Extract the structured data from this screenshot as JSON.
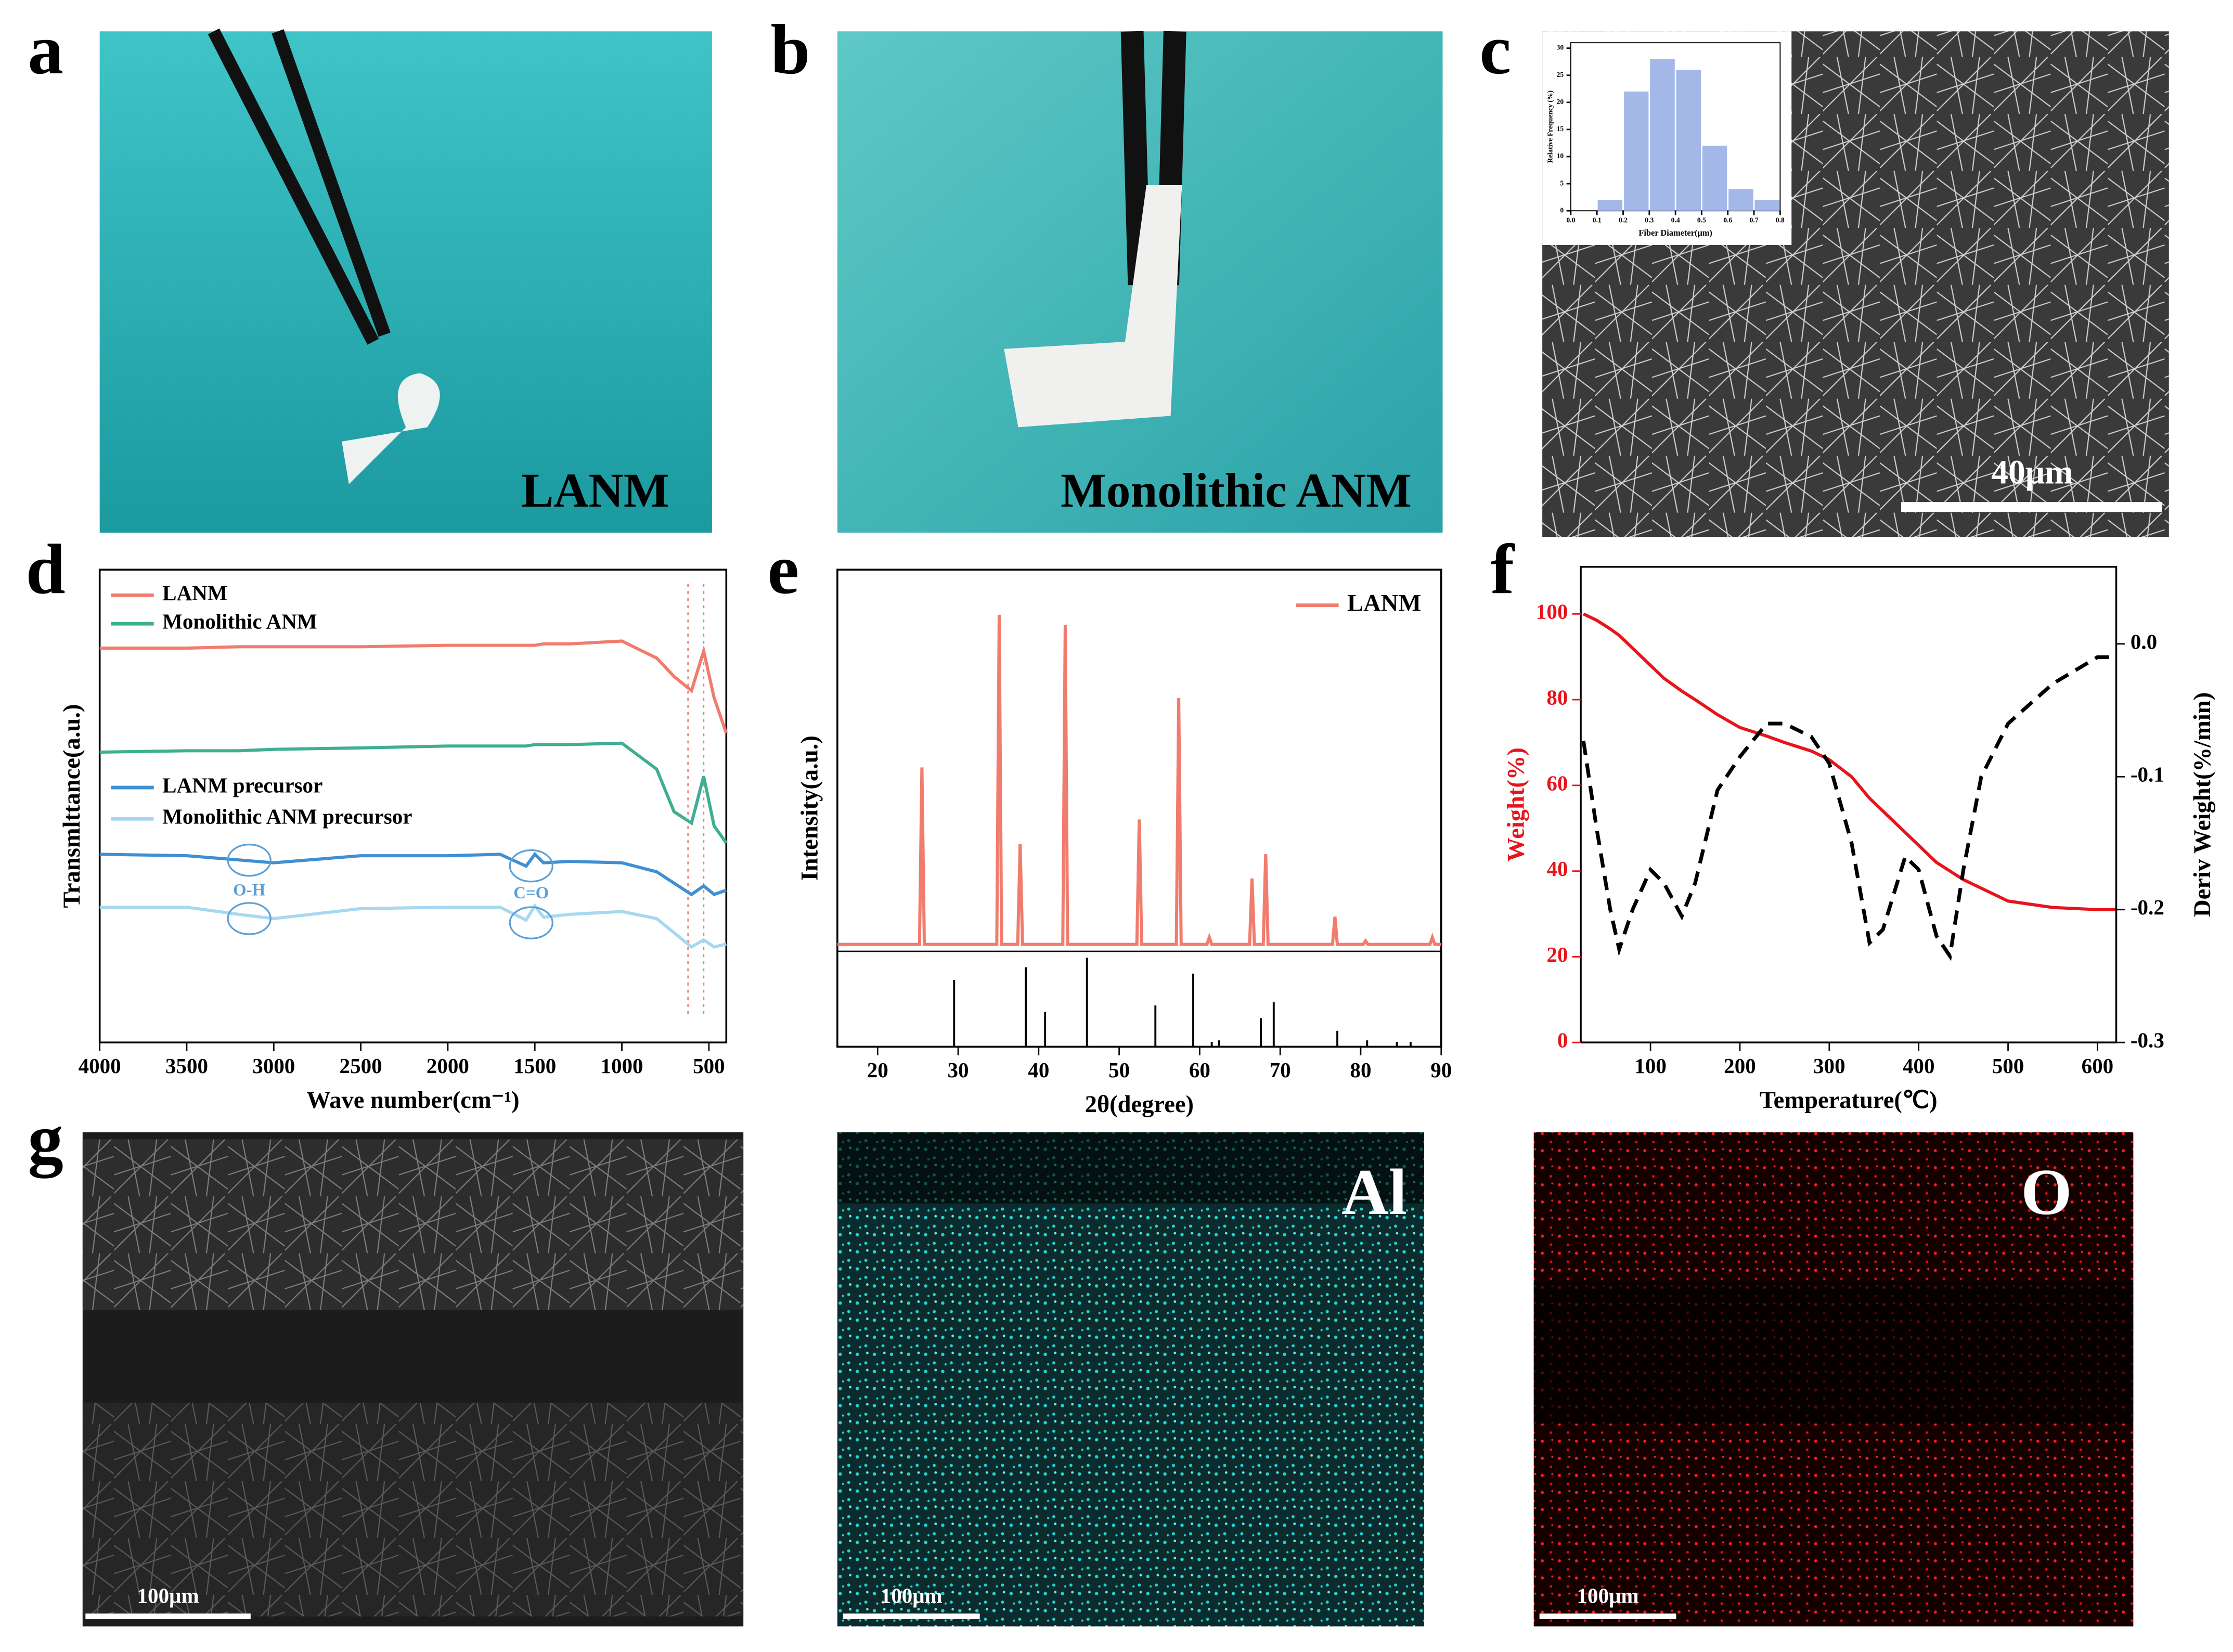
{
  "photos": [
    {
      "letter": "a",
      "label": "LANM"
    },
    {
      "letter": "b",
      "label": "Monolithic ANM"
    },
    {
      "letter": "c",
      "scale_bar": "40μm"
    },
    {
      "letter": "g",
      "scale_bar": "100μm"
    },
    {
      "scale_bar": "100μm",
      "label": "Al"
    },
    {
      "scale_bar": "100μm",
      "label": "O"
    }
  ],
  "chart_data": [
    {
      "type": "line",
      "panel": "d",
      "xlabel": "Wave number(cm⁻¹)",
      "ylabel": "Transmlttance(a.u.)",
      "x": [
        4000,
        3500,
        3200,
        3000,
        2500,
        2000,
        1700,
        1550,
        1500,
        1450,
        1300,
        1000,
        800,
        700,
        600,
        530,
        470,
        400
      ],
      "xlim": [
        4000,
        400
      ],
      "xticks": [
        4000,
        3500,
        3000,
        2500,
        2000,
        1500,
        1000,
        500
      ],
      "ylim": [
        0,
        100
      ],
      "series": [
        {
          "name": "LANM",
          "color": "#f07c6e",
          "values": [
            83.4,
            83.4,
            83.7,
            83.7,
            83.7,
            84.0,
            84.0,
            84.0,
            84.0,
            84.3,
            84.3,
            84.9,
            81.3,
            77.4,
            74.4,
            82.8,
            72.9,
            65.4
          ]
        },
        {
          "name": "Monolithic ANM",
          "color": "#3fae92",
          "values": [
            61.4,
            61.7,
            61.7,
            62.0,
            62.3,
            62.7,
            62.7,
            62.7,
            63.0,
            63.0,
            63.0,
            63.3,
            57.8,
            48.8,
            46.4,
            56.3,
            45.8,
            42.2
          ]
        },
        {
          "name": "LANM precursor",
          "color": "#3f8fd2",
          "values": [
            39.8,
            39.5,
            38.6,
            38.0,
            39.5,
            39.5,
            39.8,
            37.3,
            39.8,
            38.0,
            38.3,
            38.0,
            36.1,
            33.7,
            31.3,
            33.1,
            31.3,
            32.2
          ]
        },
        {
          "name": "Monolithic ANM precursor",
          "color": "#a8d8f0",
          "values": [
            28.6,
            28.6,
            27.1,
            26.2,
            28.3,
            28.6,
            28.6,
            25.9,
            28.9,
            26.5,
            27.1,
            27.7,
            26.2,
            23.2,
            20.2,
            21.7,
            20.2,
            20.8
          ]
        }
      ],
      "annotations": [
        "O-H",
        "C=O"
      ],
      "reference_lines": [
        620,
        530
      ],
      "legend": "top-left"
    },
    {
      "type": "line",
      "panel": "e",
      "xlabel": "2θ(degree)",
      "ylabel": "Intensity(a.u.)",
      "x": [
        15,
        25.2,
        25.5,
        25.8,
        34.8,
        35.1,
        35.4,
        37.4,
        37.7,
        38.0,
        43.0,
        43.3,
        43.6,
        52.2,
        52.5,
        52.8,
        57.1,
        57.4,
        57.7,
        60.9,
        61.2,
        61.5,
        66.2,
        66.5,
        66.8,
        67.9,
        68.2,
        68.5,
        76.5,
        76.8,
        77.1,
        80.3,
        80.6,
        80.9,
        84.0,
        84.3,
        84.6,
        88.6,
        88.9,
        89.2,
        90
      ],
      "xlim": [
        15,
        90
      ],
      "xticks": [
        20,
        30,
        40,
        50,
        60,
        70,
        80,
        90
      ],
      "ylim": [
        0,
        110
      ],
      "series": [
        {
          "name": "LANM",
          "color": "#f07c6e",
          "values": [
            2,
            2,
            53,
            2,
            2,
            97,
            2,
            2,
            31,
            2,
            2,
            94,
            2,
            2,
            38,
            2,
            2,
            73,
            2,
            2,
            4,
            2,
            2,
            21,
            2,
            2,
            28,
            2,
            2,
            10,
            2,
            2,
            3,
            2,
            2,
            2,
            2,
            2,
            4,
            2,
            2
          ]
        }
      ],
      "reference": {
        "color": "#000000",
        "x": [
          29.5,
          38.4,
          40.8,
          46.0,
          54.5,
          59.2,
          61.5,
          62.4,
          67.6,
          69.2,
          77.1,
          80.8,
          84.5,
          86.2
        ],
        "values": [
          42,
          50,
          22,
          56,
          26,
          46,
          3,
          4,
          18,
          28,
          10,
          4,
          3,
          3
        ],
        "ylim": [
          0,
          60
        ]
      },
      "legend": "top-right"
    },
    {
      "type": "line",
      "panel": "f",
      "xlabel": "Temperature(℃)",
      "ylabel": "Weight(%)",
      "y2label": "Deriv Weight(%/min)",
      "x": [
        25,
        40,
        55,
        65,
        80,
        100,
        115,
        135,
        150,
        175,
        200,
        230,
        250,
        280,
        300,
        325,
        345,
        360,
        385,
        400,
        420,
        435,
        450,
        470,
        500,
        550,
        600,
        620
      ],
      "xlim": [
        22,
        621
      ],
      "xticks": [
        100,
        200,
        300,
        400,
        500,
        600
      ],
      "ylim": [
        0,
        111
      ],
      "yticks": [
        0,
        20,
        40,
        60,
        80,
        100
      ],
      "y2lim": [
        -0.3,
        0.058
      ],
      "y2ticks": [
        {
          "value": 0,
          "label": "0.0"
        },
        -0.1,
        -0.2,
        -0.3
      ],
      "series": [
        {
          "name": "Weight",
          "color": "#e8141c",
          "values": [
            100,
            98.5,
            96.5,
            95,
            92,
            88,
            85,
            82,
            80,
            76.5,
            73.5,
            71.5,
            70,
            68,
            66,
            62,
            57,
            54,
            49,
            46,
            42,
            40,
            38,
            36,
            33,
            31.5,
            31,
            31
          ]
        },
        {
          "name": "Deriv Weight",
          "color": "#000000",
          "axis": "y2",
          "dashed": true,
          "values": [
            -0.073,
            -0.14,
            -0.2,
            -0.23,
            -0.2,
            -0.17,
            -0.18,
            -0.205,
            -0.18,
            -0.11,
            -0.085,
            -0.06,
            -0.06,
            -0.07,
            -0.09,
            -0.15,
            -0.225,
            -0.215,
            -0.16,
            -0.17,
            -0.22,
            -0.235,
            -0.17,
            -0.1,
            -0.06,
            -0.03,
            -0.01,
            -0.01
          ]
        }
      ]
    },
    {
      "type": "histogram",
      "panel": "c",
      "xlabel": "Fiber Diameter(μm)",
      "ylabel": "Relative Frequency (%)",
      "bins": [
        0.1,
        0.2,
        0.3,
        0.4,
        0.5,
        0.6,
        0.7,
        0.8
      ],
      "values": [
        2,
        22,
        28,
        26,
        12,
        4,
        2
      ],
      "color": "#a4b8e8",
      "xlim": [
        0,
        0.8
      ],
      "xticks": [
        {
          "value": 0,
          "label": "0.0"
        },
        0.1,
        0.2,
        0.3,
        0.4,
        0.5,
        0.6,
        0.7,
        0.8
      ],
      "ylim": [
        0,
        31
      ],
      "yticks": [
        0,
        5,
        10,
        15,
        20,
        25,
        30
      ]
    }
  ]
}
